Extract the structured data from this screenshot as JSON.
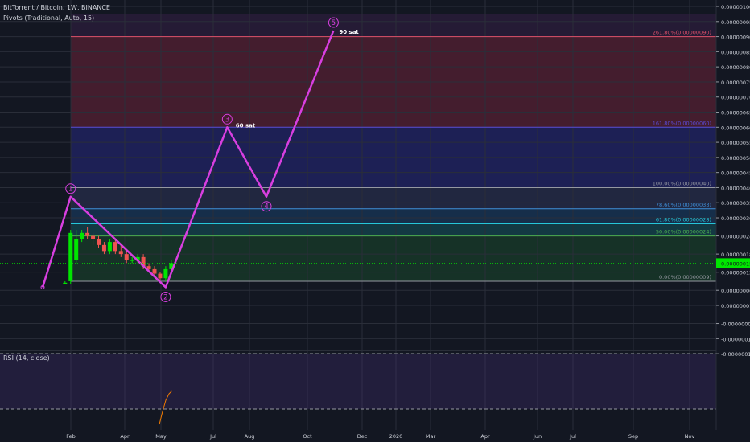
{
  "header": {
    "symbol_line": "BitTorrent / Bitcoin, 1W, BINANCE",
    "indicator_line": "Pivots (Traditional, Auto, 15)"
  },
  "rsi": {
    "label": "RSI (14, close)",
    "levels": [
      "60.0000",
      "50.0000",
      "40.0000"
    ]
  },
  "chart_data": {
    "type": "candlestick",
    "price_axis": [
      "0.00000100",
      "0.00000095",
      "0.00000090",
      "0.00000085",
      "0.00000080",
      "0.00000075",
      "0.00000070",
      "0.00000065",
      "0.00000060",
      "0.00000055",
      "0.00000050",
      "0.00000045",
      "0.00000040",
      "0.00000035",
      "0.00000030",
      "0.00000024",
      "0.00000018",
      "0.00000012",
      "0.00000006",
      "0.00000001",
      "-0.00000005",
      "-0.0000001",
      "-0.00000015"
    ],
    "price_axis_value": [
      100,
      95,
      90,
      85,
      80,
      75,
      70,
      65,
      60,
      55,
      50,
      45,
      40,
      35,
      30,
      24,
      18,
      12,
      6,
      1,
      -5,
      -10,
      -15
    ],
    "current_price_label": "0.00000015",
    "current_price": 15,
    "time_axis": [
      "Feb",
      "Apr",
      "May",
      "Jul",
      "Aug",
      "Oct",
      "Dec",
      "2020",
      "Mar",
      "Apr",
      "Jun",
      "Jul",
      "Sep",
      "Nov"
    ],
    "fib_levels": [
      {
        "label": "261.80%(0.00000090)",
        "value": 90,
        "color": "#e0506a"
      },
      {
        "label": "161.80%(0.00000060)",
        "value": 60,
        "color": "#5b4bd8"
      },
      {
        "label": "100.00%(0.00000040)",
        "value": 40,
        "color": "#9598a1"
      },
      {
        "label": "78.60%(0.00000033)",
        "value": 33,
        "color": "#3f8fd8"
      },
      {
        "label": "61.80%(0.00000028)",
        "value": 28,
        "color": "#26c6da"
      },
      {
        "label": "50.00%(0.00000024)",
        "value": 24,
        "color": "#4caf50"
      },
      {
        "label": "0.00%(0.00000009)",
        "value": 9,
        "color": "#9598a1"
      }
    ],
    "wave_labels": [
      "1",
      "2",
      "3",
      "4",
      "5"
    ],
    "wave_points": [
      {
        "t": 0,
        "p": 7
      },
      {
        "t": 5,
        "p": 37
      },
      {
        "t": 22,
        "p": 7
      },
      {
        "t": 33,
        "p": 60
      },
      {
        "t": 40,
        "p": 37
      },
      {
        "t": 52,
        "p": 92
      }
    ],
    "annotations": [
      {
        "text": "60 sat",
        "t": 34.5,
        "p": 60
      },
      {
        "text": "90 sat",
        "t": 53,
        "p": 91
      }
    ],
    "candles": [
      {
        "t": 4,
        "o": 8,
        "h": 9,
        "l": 8,
        "c": 8.5
      },
      {
        "t": 5,
        "o": 9,
        "h": 26,
        "l": 8,
        "c": 25
      },
      {
        "t": 6,
        "o": 16,
        "h": 26,
        "l": 15,
        "c": 23
      },
      {
        "t": 7,
        "o": 23,
        "h": 26,
        "l": 22,
        "c": 25
      },
      {
        "t": 8,
        "o": 25,
        "h": 27,
        "l": 23,
        "c": 24
      },
      {
        "t": 9,
        "o": 24,
        "h": 25,
        "l": 21,
        "c": 23
      },
      {
        "t": 10,
        "o": 23,
        "h": 24,
        "l": 20,
        "c": 21
      },
      {
        "t": 11,
        "o": 21,
        "h": 22,
        "l": 18,
        "c": 19
      },
      {
        "t": 12,
        "o": 19,
        "h": 23,
        "l": 18,
        "c": 22
      },
      {
        "t": 13,
        "o": 22,
        "h": 23,
        "l": 18,
        "c": 19
      },
      {
        "t": 14,
        "o": 19,
        "h": 21,
        "l": 17,
        "c": 18
      },
      {
        "t": 15,
        "o": 18,
        "h": 19,
        "l": 15,
        "c": 16
      },
      {
        "t": 16,
        "o": 16,
        "h": 17,
        "l": 15,
        "c": 16
      },
      {
        "t": 17,
        "o": 16,
        "h": 18,
        "l": 15,
        "c": 17
      },
      {
        "t": 18,
        "o": 17,
        "h": 18,
        "l": 13,
        "c": 14
      },
      {
        "t": 19,
        "o": 14,
        "h": 15,
        "l": 12,
        "c": 13
      },
      {
        "t": 20,
        "o": 13,
        "h": 14,
        "l": 11,
        "c": 11.5
      },
      {
        "t": 21,
        "o": 11.5,
        "h": 12,
        "l": 9,
        "c": 10
      },
      {
        "t": 22,
        "o": 10,
        "h": 14,
        "l": 9,
        "c": 13
      },
      {
        "t": 23,
        "o": 13,
        "h": 16,
        "l": 12,
        "c": 15
      }
    ]
  },
  "colors": {
    "background": "#131722",
    "wave": "#d83fe0",
    "up": "#00e600",
    "down": "#ef5350",
    "price_tag": "#00e600"
  }
}
